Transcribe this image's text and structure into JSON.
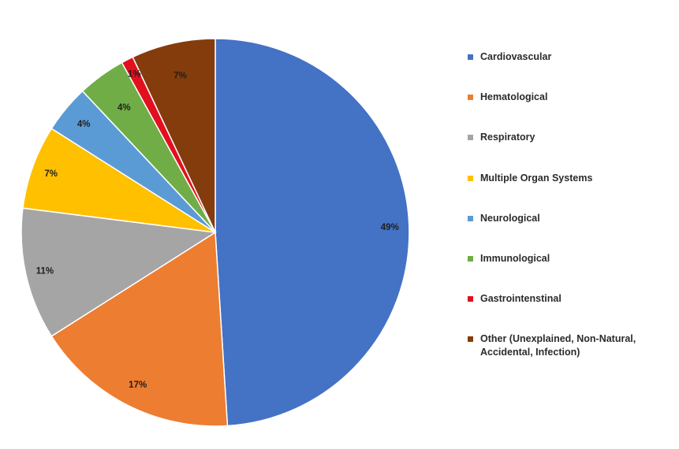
{
  "chart_data": {
    "type": "pie",
    "title": "",
    "categories": [
      "Cardiovascular",
      "Hematological",
      "Respiratory",
      "Multiple Organ Systems",
      "Neurological",
      "Immunological",
      "Gastrointenstinal",
      "Other (Unexplained, Non-Natural,\nAccidental, Infection)"
    ],
    "values": [
      49,
      17,
      11,
      7,
      4,
      4,
      1,
      7
    ],
    "labels": [
      "49%",
      "17%",
      "11%",
      "7%",
      "4%",
      "4%",
      "1%",
      "7%"
    ],
    "colors": [
      "#4472C4",
      "#ED7D31",
      "#A5A5A5",
      "#FFC000",
      "#5B9BD5",
      "#70AD47",
      "#E2101F",
      "#843C0C"
    ],
    "legend_position": "right"
  }
}
